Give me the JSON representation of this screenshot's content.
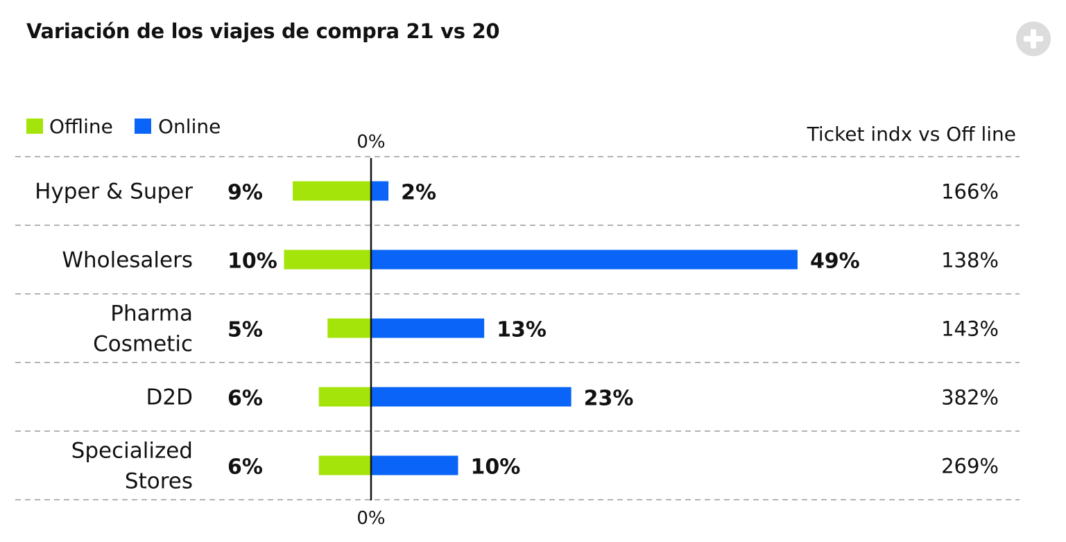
{
  "title": "Variación de los viajes de compra 21 vs 20",
  "header": {
    "add_icon": "plus-icon"
  },
  "colors": {
    "offline": "#a4e40a",
    "online": "#0a64f8",
    "grid": "#b3b3b3",
    "axis": "#111111"
  },
  "chart_data": {
    "type": "bar",
    "orientation": "horizontal-diverging",
    "categories": [
      [
        "Hyper & Super"
      ],
      [
        "Wholesalers"
      ],
      [
        "Pharma",
        "Cosmetic"
      ],
      [
        "D2D"
      ],
      [
        "Specialized",
        "Stores"
      ]
    ],
    "series": [
      {
        "name": "Offline",
        "values": [
          9,
          10,
          5,
          6,
          6
        ],
        "labels": [
          "9%",
          "10%",
          "5%",
          "6%",
          "6%"
        ]
      },
      {
        "name": "Online",
        "values": [
          2,
          49,
          13,
          23,
          10
        ],
        "labels": [
          "2%",
          "49%",
          "13%",
          "23%",
          "10%"
        ]
      }
    ],
    "right_column": {
      "header": "Ticket indx vs Off line",
      "values": [
        "166%",
        "138%",
        "143%",
        "382%",
        "269%"
      ]
    },
    "axis_top_label": "0%",
    "axis_bottom_label": "0%",
    "legend_position": "top-left",
    "grid": true
  }
}
